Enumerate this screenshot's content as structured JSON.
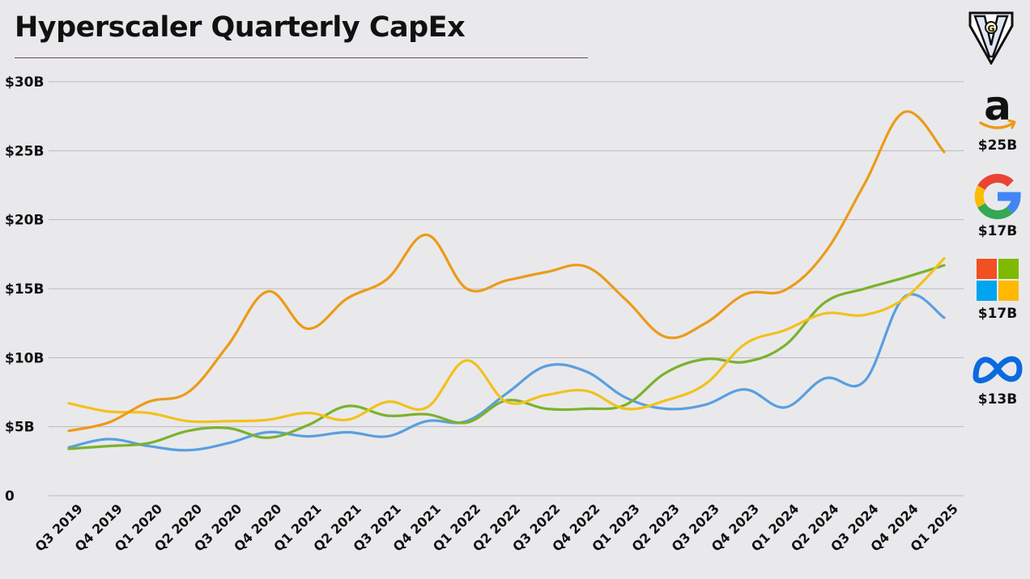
{
  "title": "Hyperscaler Quarterly CapEx",
  "brand_logo_icon": "gv-shield-logo",
  "legend": [
    {
      "name": "Amazon",
      "icon": "amazon-logo-icon",
      "value_label": "$25B",
      "color": "#ec9b17"
    },
    {
      "name": "Google",
      "icon": "google-logo-icon",
      "value_label": "$17B",
      "color": "#f2c11d"
    },
    {
      "name": "Microsoft",
      "icon": "microsoft-logo-icon",
      "value_label": "$17B",
      "color": "#7bb22c"
    },
    {
      "name": "Meta",
      "icon": "meta-logo-icon",
      "value_label": "$13B",
      "color": "#5a9fe0"
    }
  ],
  "chart_data": {
    "type": "line",
    "title": "Hyperscaler Quarterly CapEx",
    "xlabel": "",
    "ylabel": "",
    "y_ticks": [
      "0",
      "$5B",
      "$10B",
      "$15B",
      "$20B",
      "$25B",
      "$30B"
    ],
    "y_tick_values": [
      0,
      5,
      10,
      15,
      20,
      25,
      30
    ],
    "ylim": [
      0,
      30
    ],
    "grid": true,
    "legend_placement": "right",
    "categories": [
      "Q3 2019",
      "Q4 2019",
      "Q1 2020",
      "Q2 2020",
      "Q3 2020",
      "Q4 2020",
      "Q1 2021",
      "Q2 2021",
      "Q3 2021",
      "Q4 2021",
      "Q1 2022",
      "Q2 2022",
      "Q3 2022",
      "Q4 2022",
      "Q1 2023",
      "Q2 2023",
      "Q3 2023",
      "Q4 2023",
      "Q1 2024",
      "Q2 2024",
      "Q3 2024",
      "Q4 2024",
      "Q1 2025"
    ],
    "series": [
      {
        "key": "amazon",
        "color": "#ec9b17",
        "values": [
          4.7,
          5.3,
          6.8,
          7.5,
          10.9,
          14.8,
          12.1,
          14.3,
          15.7,
          18.9,
          15.0,
          15.6,
          16.2,
          16.6,
          14.2,
          11.5,
          12.5,
          14.6,
          14.9,
          17.6,
          22.6,
          27.8,
          24.9
        ]
      },
      {
        "key": "google",
        "color": "#f2c11d",
        "values": [
          6.7,
          6.1,
          6.0,
          5.4,
          5.4,
          5.5,
          6.0,
          5.5,
          6.8,
          6.4,
          9.8,
          6.8,
          7.3,
          7.6,
          6.3,
          6.9,
          8.1,
          11.0,
          12.0,
          13.2,
          13.1,
          14.3,
          17.2
        ]
      },
      {
        "key": "microsoft",
        "color": "#7bb22c",
        "values": [
          3.4,
          3.6,
          3.8,
          4.7,
          4.9,
          4.2,
          5.1,
          6.5,
          5.8,
          5.9,
          5.3,
          6.9,
          6.3,
          6.3,
          6.6,
          8.9,
          9.9,
          9.7,
          10.9,
          14.0,
          15.0,
          15.8,
          16.7
        ]
      },
      {
        "key": "meta",
        "color": "#5a9fe0",
        "values": [
          3.5,
          4.1,
          3.6,
          3.3,
          3.8,
          4.6,
          4.3,
          4.6,
          4.3,
          5.4,
          5.4,
          7.4,
          9.4,
          9.0,
          7.1,
          6.3,
          6.6,
          7.7,
          6.4,
          8.5,
          8.3,
          14.4,
          12.9
        ]
      }
    ]
  }
}
